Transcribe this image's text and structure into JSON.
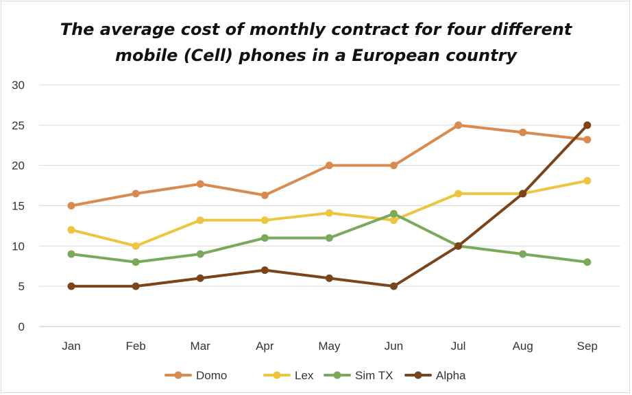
{
  "chart_data": {
    "type": "line",
    "title_lines": [
      "The average cost of monthly contract for four different",
      "mobile (Cell) phones in a European country"
    ],
    "categories": [
      "Jan",
      "Feb",
      "Mar",
      "Apr",
      "May",
      "Jun",
      "Jul",
      "Aug",
      "Sep"
    ],
    "ylim": [
      0,
      30
    ],
    "yticks": [
      "0",
      "5",
      "10",
      "15",
      "20",
      "25",
      "30"
    ],
    "grid": true,
    "legend_position": "bottom",
    "series": [
      {
        "name": "Domo",
        "color": "#d98a4e",
        "values": [
          15,
          16.5,
          17.7,
          16.3,
          20,
          20,
          25,
          24.1,
          23.2
        ]
      },
      {
        "name": "Lex",
        "color": "#edc540",
        "values": [
          12,
          10,
          13.2,
          13.2,
          14.1,
          13.2,
          16.5,
          16.5,
          18.1
        ]
      },
      {
        "name": "Sim TX",
        "color": "#7aa95a",
        "values": [
          9,
          8,
          9,
          11,
          11,
          14,
          10,
          9,
          8
        ]
      },
      {
        "name": "Alpha",
        "color": "#7b4419",
        "values": [
          5,
          5,
          6,
          7,
          6,
          5,
          10,
          16.5,
          25
        ]
      }
    ]
  }
}
